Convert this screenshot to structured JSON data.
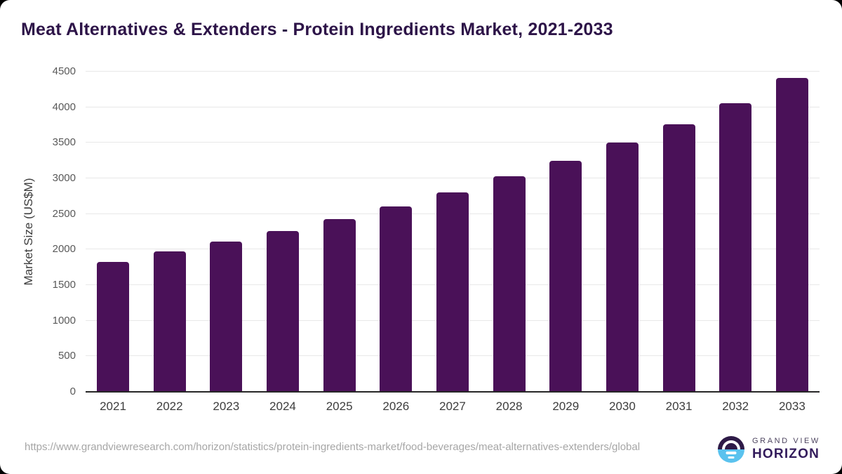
{
  "chart_data": {
    "type": "bar",
    "title": "Meat Alternatives & Extenders - Protein Ingredients Market, 2021-2033",
    "categories": [
      "2021",
      "2022",
      "2023",
      "2024",
      "2025",
      "2026",
      "2027",
      "2028",
      "2029",
      "2030",
      "2031",
      "2032",
      "2033"
    ],
    "values": [
      1830,
      1970,
      2110,
      2260,
      2430,
      2610,
      2800,
      3025,
      3250,
      3500,
      3760,
      4060,
      4410
    ],
    "xlabel": "",
    "ylabel": "Market Size (US$M)",
    "ylim": [
      0,
      4500
    ],
    "yticks": [
      0,
      500,
      1000,
      1500,
      2000,
      2500,
      3000,
      3500,
      4000,
      4500
    ],
    "grid": "horizontal",
    "legend": "none",
    "bar_color": "#4a1158"
  },
  "footer": {
    "source_url": "https://www.grandviewresearch.com/horizon/statistics/protein-ingredients-market/food-beverages/meat-alternatives-extenders/global",
    "logo": {
      "line1": "GRAND VIEW",
      "line2": "HORIZON"
    }
  },
  "colors": {
    "title": "#2d1448",
    "bar": "#4a1158",
    "gridline": "#e8e8e8",
    "axis_line": "#262626",
    "ytick_label": "#595959",
    "xtick_label": "#3d3d3d",
    "url_text": "#a6a6a6",
    "logo_purple": "#2e1a47",
    "logo_blue": "#5ac2ee"
  }
}
